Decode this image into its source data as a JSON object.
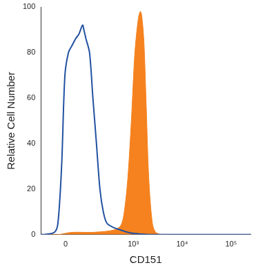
{
  "chart_data": {
    "type": "line",
    "x_label": "CD151",
    "y_label": "Relative Cell Number",
    "log": "x",
    "grid": false,
    "xlim": [
      -120,
      250000
    ],
    "xticks": [
      0,
      {
        "value": 1000,
        "label": "10³"
      },
      {
        "value": 10000,
        "label": "10⁴"
      },
      {
        "value": 100000,
        "label": "10⁵"
      }
    ],
    "ylim": [
      0,
      100
    ],
    "yticks": [
      0,
      20,
      40,
      60,
      80,
      100
    ],
    "series": [
      {
        "type": "area",
        "color": "#f5821f",
        "x": [
          -120,
          -31,
          25,
          138,
          398,
          555,
          653,
          774,
          913,
          1079,
          1270,
          1400,
          1494,
          1650,
          1820,
          2075,
          2460,
          2880,
          4000,
          250000
        ],
        "values": [
          0,
          0,
          1,
          1,
          2,
          4,
          10,
          25,
          50,
          80,
          95,
          98,
          96,
          85,
          60,
          25,
          5,
          1,
          0,
          0
        ]
      },
      {
        "type": "line",
        "color": "#2151a1",
        "x": [
          -120,
          -100,
          -46,
          -31,
          -16,
          -3,
          11,
          25,
          40,
          55,
          73,
          80,
          92,
          114,
          138,
          167,
          200,
          237,
          283,
          398,
          555,
          774,
          1079,
          2075,
          250000
        ],
        "values": [
          0,
          0,
          1,
          5,
          30,
          70,
          80,
          83,
          86,
          88,
          92,
          90,
          86,
          80,
          60,
          40,
          20,
          10,
          5,
          3,
          2,
          1,
          0.5,
          0,
          0
        ]
      }
    ]
  }
}
